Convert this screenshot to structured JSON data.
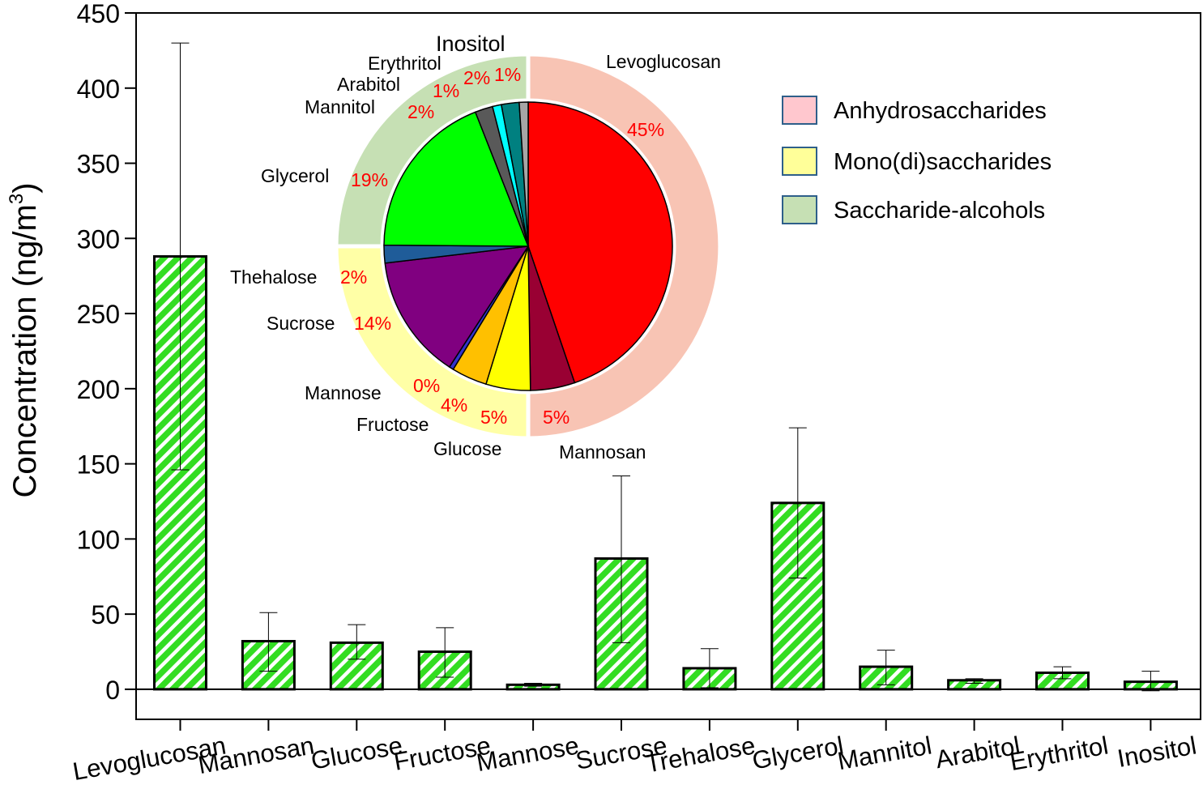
{
  "chart_data": [
    {
      "type": "bar",
      "ylabel": "Concentration (ng/m",
      "ylabel_sup": "3",
      "ylabel_close": ")",
      "ylim": [
        -20,
        450
      ],
      "yticks": [
        0,
        50,
        100,
        150,
        200,
        250,
        300,
        350,
        400,
        450
      ],
      "categories": [
        "Levoglucosan",
        "Mannosan",
        "Glucose",
        "Fructose",
        "Mannose",
        "Sucrose",
        "Trehalose",
        "Glycerol",
        "Mannitol",
        "Arabitol",
        "Erythritol",
        "Inositol"
      ],
      "values": [
        288,
        32,
        31,
        25,
        3,
        87,
        14,
        124,
        15,
        6,
        11,
        5
      ],
      "error_high": [
        430,
        51,
        43,
        41,
        4,
        142,
        27,
        174,
        26,
        7,
        15,
        12
      ],
      "error_low": [
        146,
        12,
        20,
        8,
        2,
        31,
        1,
        74,
        3,
        4,
        7,
        -1
      ],
      "bar_fill": "#33dd22",
      "bar_hatch": "#ffffff",
      "grid": false
    },
    {
      "type": "pie",
      "slices": [
        {
          "label": "Levoglucosan",
          "pct_label": "45%",
          "value": 45,
          "color": "#ff0000"
        },
        {
          "label": "Mannosan",
          "pct_label": "5%",
          "value": 5,
          "color": "#990033"
        },
        {
          "label": "Glucose",
          "pct_label": "5%",
          "value": 5,
          "color": "#ffff00"
        },
        {
          "label": "Fructose",
          "pct_label": "4%",
          "value": 4,
          "color": "#ffc000"
        },
        {
          "label": "Mannose",
          "pct_label": "0%",
          "value": 0.5,
          "color": "#3333cc"
        },
        {
          "label": "Sucrose",
          "pct_label": "14%",
          "value": 14,
          "color": "#800080"
        },
        {
          "label": "Thehalose",
          "pct_label": "2%",
          "value": 2,
          "color": "#1f5c99"
        },
        {
          "label": "Glycerol",
          "pct_label": "19%",
          "value": 19,
          "color": "#00ff00"
        },
        {
          "label": "Mannitol",
          "pct_label": "2%",
          "value": 2,
          "color": "#595959"
        },
        {
          "label": "Arabitol",
          "pct_label": "1%",
          "value": 1,
          "color": "#00ffff"
        },
        {
          "label": "Erythritol",
          "pct_label": "2%",
          "value": 2,
          "color": "#008080"
        },
        {
          "label": "Inositol",
          "pct_label": "1%",
          "value": 1,
          "color": "#a6a6a6"
        }
      ],
      "outer_ring": [
        {
          "group": "Anhydrosaccharides",
          "value": 50,
          "color": "#f8c4b4"
        },
        {
          "group": "Mono(di)saccharides",
          "value": 25,
          "color": "#ffffa6"
        },
        {
          "group": "Saccharide-alcohols",
          "value": 25,
          "color": "#c6e0b4"
        }
      ],
      "legend_position": "top-right",
      "legend": [
        {
          "label": "Anhydrosaccharides",
          "color": "#ffc7ce"
        },
        {
          "label": "Mono(di)saccharides",
          "color": "#ffff99"
        },
        {
          "label": "Saccharide-alcohols",
          "color": "#c6e0b4"
        }
      ]
    }
  ]
}
